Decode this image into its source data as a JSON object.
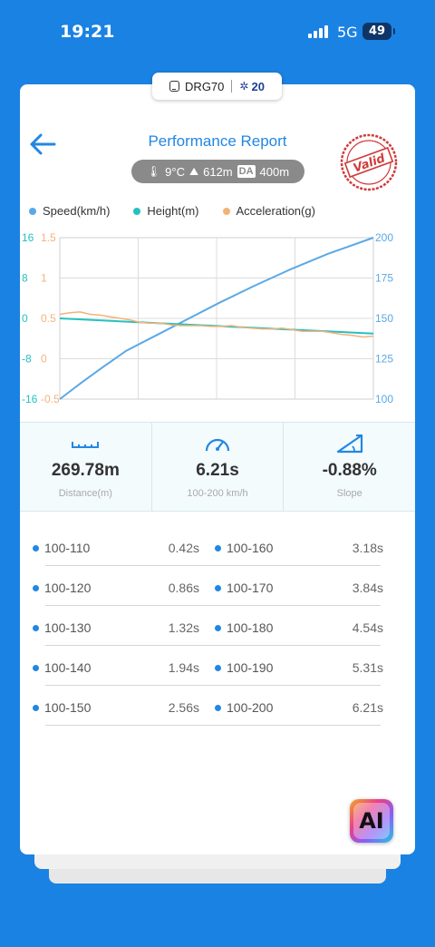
{
  "status_bar": {
    "time": "19:21",
    "network": "5G",
    "battery": "49"
  },
  "header": {
    "device_name": "DRG70",
    "satellites": "20",
    "title": "Performance Report",
    "stamp_text": "Valid"
  },
  "conditions": {
    "temperature": "9°C",
    "altitude": "612m",
    "da_label": "DA",
    "density_altitude": "400m"
  },
  "legend": [
    {
      "label": "Speed(km/h)",
      "color": "#5aa9e6"
    },
    {
      "label": "Height(m)",
      "color": "#26c0c0"
    },
    {
      "label": "Acceleration(g)",
      "color": "#f4b27a"
    }
  ],
  "chart_data": {
    "type": "line",
    "axes": {
      "height_left": {
        "ticks": [
          "16",
          "8",
          "0",
          "-8",
          "-16"
        ],
        "range": [
          -16,
          16
        ],
        "color": "#26c0c0"
      },
      "accel_left": {
        "ticks": [
          "1.5",
          "1",
          "0.5",
          "0",
          "-0.5"
        ],
        "range": [
          -0.5,
          1.5
        ],
        "color": "#f4b27a"
      },
      "speed_right": {
        "ticks": [
          "200",
          "175",
          "150",
          "125",
          "100"
        ],
        "range": [
          100,
          200
        ],
        "color": "#5aa9e6"
      }
    },
    "x_range": [
      0,
      6.21
    ],
    "series": [
      {
        "name": "Speed(km/h)",
        "axis": "speed_right",
        "color": "#5aa9e6",
        "x": [
          0,
          0.42,
          0.86,
          1.32,
          1.94,
          2.56,
          3.18,
          3.84,
          4.54,
          5.31,
          6.21
        ],
        "y": [
          100,
          110,
          120,
          130,
          140,
          150,
          160,
          170,
          180,
          190,
          200
        ]
      },
      {
        "name": "Height(m)",
        "axis": "height_left",
        "color": "#26c0c0",
        "x": [
          0,
          6.21
        ],
        "y": [
          0,
          -3
        ]
      },
      {
        "name": "Acceleration(g)",
        "axis": "accel_left",
        "color": "#f4b27a",
        "x": [
          0,
          0.2,
          0.4,
          0.6,
          0.8,
          1.0,
          1.2,
          1.4,
          1.6,
          1.8,
          2.0,
          2.2,
          2.4,
          2.6,
          2.8,
          3.0,
          3.2,
          3.4,
          3.6,
          3.8,
          4.0,
          4.2,
          4.4,
          4.6,
          4.8,
          5.0,
          5.2,
          5.4,
          5.6,
          5.8,
          6.0,
          6.21
        ],
        "y": [
          0.55,
          0.57,
          0.58,
          0.55,
          0.54,
          0.52,
          0.5,
          0.48,
          0.45,
          0.44,
          0.44,
          0.42,
          0.41,
          0.41,
          0.41,
          0.4,
          0.4,
          0.41,
          0.39,
          0.38,
          0.37,
          0.37,
          0.38,
          0.36,
          0.34,
          0.34,
          0.34,
          0.32,
          0.3,
          0.29,
          0.27,
          0.28
        ]
      }
    ],
    "grid": true
  },
  "stats": [
    {
      "value": "269.78m",
      "label": "Distance(m)",
      "icon": "ruler-icon"
    },
    {
      "value": "6.21s",
      "label": "100-200 km/h",
      "icon": "speedometer-icon"
    },
    {
      "value": "-0.88%",
      "label": "Slope",
      "icon": "slope-icon"
    }
  ],
  "splits": [
    {
      "left_range": "100-110",
      "left_time": "0.42s",
      "right_range": "100-160",
      "right_time": "3.18s"
    },
    {
      "left_range": "100-120",
      "left_time": "0.86s",
      "right_range": "100-170",
      "right_time": "3.84s"
    },
    {
      "left_range": "100-130",
      "left_time": "1.32s",
      "right_range": "100-180",
      "right_time": "4.54s"
    },
    {
      "left_range": "100-140",
      "left_time": "1.94s",
      "right_range": "100-190",
      "right_time": "5.31s"
    },
    {
      "left_range": "100-150",
      "left_time": "2.56s",
      "right_range": "100-200",
      "right_time": "6.21s"
    }
  ],
  "ai_button": {
    "label": "AI"
  }
}
